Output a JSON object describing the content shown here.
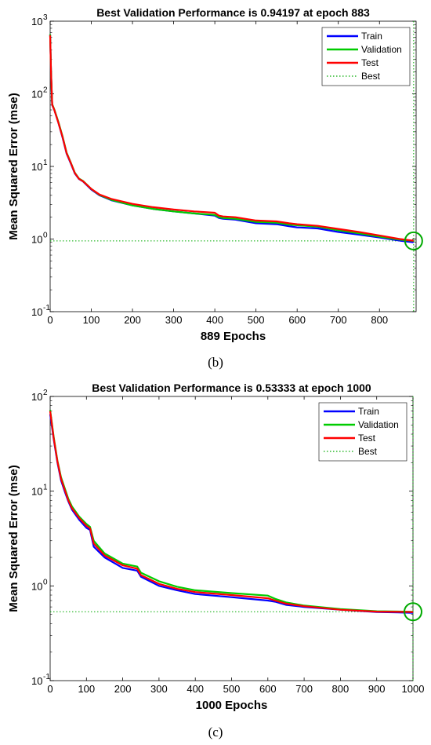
{
  "chart_data": [
    {
      "type": "line",
      "title": "Best Validation Performance is 0.94197 at epoch 883",
      "xlabel": "889 Epochs",
      "ylabel": "Mean Squared Error  (mse)",
      "caption": "(b)",
      "y_scale": "log",
      "xlim": [
        0,
        889
      ],
      "ylim": [
        0.1,
        1000
      ],
      "x_ticks": [
        0,
        100,
        200,
        300,
        400,
        500,
        600,
        700,
        800
      ],
      "x_tick_labels": [
        "0",
        "100",
        "200",
        "300",
        "400",
        "500",
        "600",
        "700",
        "800"
      ],
      "y_ticks": [
        0.1,
        1,
        10,
        100,
        1000
      ],
      "y_tick_bases": [
        "10",
        "10",
        "10",
        "10",
        "10"
      ],
      "y_tick_exponents": [
        "-1",
        "0",
        "1",
        "2",
        "3"
      ],
      "legend_position": "top-right",
      "grid": false,
      "series": [
        {
          "name": "Train",
          "color": "#0000ff",
          "x": [
            0,
            2,
            5,
            10,
            20,
            30,
            40,
            50,
            60,
            70,
            80,
            100,
            120,
            150,
            200,
            250,
            300,
            350,
            400,
            410,
            420,
            450,
            500,
            550,
            580,
            600,
            650,
            700,
            750,
            800,
            850,
            883
          ],
          "y": [
            650,
            200,
            70,
            60,
            40,
            25,
            15,
            11,
            8,
            6.7,
            6.2,
            4.8,
            4,
            3.4,
            2.9,
            2.6,
            2.4,
            2.25,
            2.1,
            1.95,
            1.9,
            1.85,
            1.65,
            1.6,
            1.5,
            1.45,
            1.4,
            1.25,
            1.15,
            1.05,
            0.95,
            0.9
          ]
        },
        {
          "name": "Validation",
          "color": "#00cc00",
          "x": [
            0,
            2,
            5,
            10,
            20,
            30,
            40,
            50,
            60,
            70,
            80,
            100,
            120,
            150,
            200,
            250,
            300,
            350,
            400,
            410,
            420,
            450,
            500,
            550,
            580,
            600,
            650,
            700,
            750,
            800,
            850,
            883
          ],
          "y": [
            660,
            205,
            72,
            61,
            41,
            26,
            15.5,
            11.3,
            8.2,
            6.8,
            6.3,
            4.9,
            4.05,
            3.45,
            2.9,
            2.6,
            2.4,
            2.25,
            2.15,
            2.0,
            1.95,
            1.9,
            1.72,
            1.68,
            1.58,
            1.55,
            1.48,
            1.32,
            1.2,
            1.08,
            0.98,
            0.942
          ]
        },
        {
          "name": "Test",
          "color": "#ff0000",
          "x": [
            0,
            2,
            5,
            10,
            20,
            30,
            40,
            50,
            60,
            70,
            80,
            100,
            120,
            150,
            200,
            250,
            300,
            350,
            400,
            410,
            420,
            450,
            500,
            550,
            580,
            600,
            650,
            700,
            750,
            800,
            850,
            883
          ],
          "y": [
            640,
            200,
            71,
            60,
            40,
            25.5,
            15.2,
            11.2,
            8.1,
            6.75,
            6.25,
            4.9,
            4.1,
            3.55,
            3.05,
            2.75,
            2.55,
            2.4,
            2.3,
            2.1,
            2.05,
            2.0,
            1.8,
            1.75,
            1.65,
            1.6,
            1.52,
            1.38,
            1.25,
            1.12,
            1.0,
            0.95
          ]
        }
      ],
      "best": {
        "name": "Best",
        "color": "#00aa00",
        "epoch": 883,
        "value": 0.94197
      }
    },
    {
      "type": "line",
      "title": "Best Validation Performance is 0.53333 at epoch 1000",
      "xlabel": "1000 Epochs",
      "ylabel": "Mean Squared Error  (mse)",
      "caption": "(c)",
      "y_scale": "log",
      "xlim": [
        0,
        1000
      ],
      "ylim": [
        0.1,
        100
      ],
      "x_ticks": [
        0,
        100,
        200,
        300,
        400,
        500,
        600,
        700,
        800,
        900,
        1000
      ],
      "x_tick_labels": [
        "0",
        "100",
        "200",
        "300",
        "400",
        "500",
        "600",
        "700",
        "800",
        "900",
        "1000"
      ],
      "y_ticks": [
        0.1,
        1,
        10,
        100
      ],
      "y_tick_bases": [
        "10",
        "10",
        "10",
        "10"
      ],
      "y_tick_exponents": [
        "-1",
        "0",
        "1",
        "2"
      ],
      "legend_position": "top-right",
      "grid": false,
      "series": [
        {
          "name": "Train",
          "color": "#0000ff",
          "x": [
            0,
            10,
            20,
            30,
            40,
            50,
            60,
            80,
            100,
            110,
            120,
            150,
            200,
            240,
            250,
            300,
            350,
            400,
            500,
            600,
            620,
            650,
            700,
            800,
            900,
            1000
          ],
          "y": [
            65,
            35,
            20,
            13,
            10,
            7.8,
            6.4,
            5,
            4.1,
            3.9,
            2.6,
            2,
            1.55,
            1.45,
            1.25,
            1,
            0.9,
            0.82,
            0.76,
            0.7,
            0.68,
            0.63,
            0.6,
            0.56,
            0.53,
            0.52
          ]
        },
        {
          "name": "Validation",
          "color": "#00cc00",
          "x": [
            0,
            10,
            20,
            30,
            40,
            50,
            60,
            80,
            100,
            110,
            120,
            150,
            200,
            240,
            250,
            300,
            350,
            400,
            500,
            600,
            620,
            650,
            700,
            800,
            900,
            1000
          ],
          "y": [
            72,
            37,
            21,
            14,
            10.8,
            8.3,
            6.9,
            5.4,
            4.5,
            4.2,
            3.0,
            2.2,
            1.72,
            1.6,
            1.38,
            1.12,
            0.98,
            0.9,
            0.84,
            0.79,
            0.73,
            0.67,
            0.62,
            0.57,
            0.54,
            0.53333
          ]
        },
        {
          "name": "Test",
          "color": "#ff0000",
          "x": [
            0,
            10,
            20,
            30,
            40,
            50,
            60,
            80,
            100,
            110,
            120,
            150,
            200,
            240,
            250,
            300,
            350,
            400,
            500,
            600,
            620,
            650,
            700,
            800,
            900,
            1000
          ],
          "y": [
            70,
            36,
            20.5,
            13.5,
            10.4,
            8,
            6.6,
            5.2,
            4.3,
            4.05,
            2.8,
            2.1,
            1.65,
            1.52,
            1.3,
            1.05,
            0.93,
            0.86,
            0.8,
            0.74,
            0.7,
            0.65,
            0.61,
            0.56,
            0.535,
            0.53
          ]
        }
      ],
      "best": {
        "name": "Best",
        "color": "#00aa00",
        "epoch": 1000,
        "value": 0.53333
      }
    }
  ]
}
